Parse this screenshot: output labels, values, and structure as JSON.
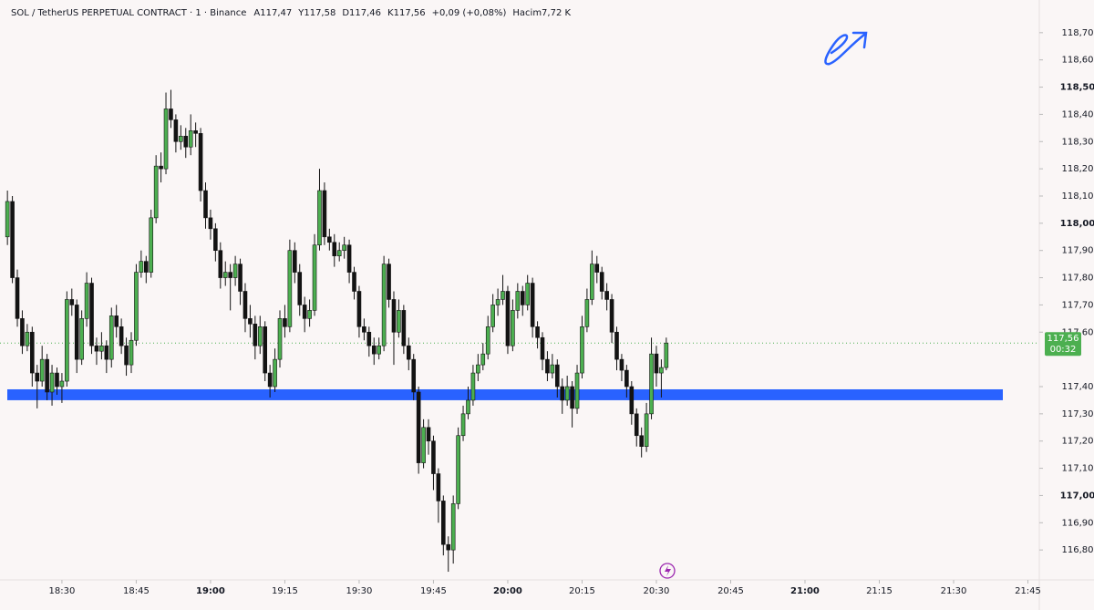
{
  "chart_data": {
    "type": "candlestick",
    "header": {
      "symbol": "SOL / TetherUS PERPETUAL CONTRACT · 1 · Binance",
      "ohlc_labels": [
        "A117,47",
        "Y117,58",
        "D117,46",
        "K117,56"
      ],
      "change": "+0,09 (+0,08%)",
      "volume": "Hacim7,72 K"
    },
    "up_color": "#4caf50",
    "down_color": "#131313",
    "zone_color": "#2962ff",
    "zone": [
      117.35,
      117.39
    ],
    "last_price": {
      "value": 117.56,
      "label": "117,56"
    },
    "countdown": "00:32",
    "xlim": [
      1097.5,
      1307.3
    ],
    "ylim": [
      116.69,
      118.82
    ],
    "yticks": [
      {
        "value": 116.8,
        "label": "116,80"
      },
      {
        "value": 116.9,
        "label": "116,90"
      },
      {
        "value": 117.0,
        "label": "117,00"
      },
      {
        "value": 117.1,
        "label": "117,10"
      },
      {
        "value": 117.2,
        "label": "117,20"
      },
      {
        "value": 117.3,
        "label": "117,30"
      },
      {
        "value": 117.4,
        "label": "117,40"
      },
      {
        "value": 117.6,
        "label": "117,60"
      },
      {
        "value": 117.7,
        "label": "117,70"
      },
      {
        "value": 117.8,
        "label": "117,80"
      },
      {
        "value": 117.9,
        "label": "117,90"
      },
      {
        "value": 118.0,
        "label": "118,00"
      },
      {
        "value": 118.1,
        "label": "118,10"
      },
      {
        "value": 118.2,
        "label": "118,20"
      },
      {
        "value": 118.3,
        "label": "118,30"
      },
      {
        "value": 118.4,
        "label": "118,40"
      },
      {
        "value": 118.5,
        "label": "118,50"
      },
      {
        "value": 118.6,
        "label": "118,60"
      },
      {
        "value": 118.7,
        "label": "118,70"
      }
    ],
    "xticks": [
      {
        "value": 1110,
        "label": "18:30"
      },
      {
        "value": 1125,
        "label": "18:45"
      },
      {
        "value": 1140,
        "label": "19:00"
      },
      {
        "value": 1155,
        "label": "19:15"
      },
      {
        "value": 1170,
        "label": "19:30"
      },
      {
        "value": 1185,
        "label": "19:45"
      },
      {
        "value": 1200,
        "label": "20:00"
      },
      {
        "value": 1215,
        "label": "20:15"
      },
      {
        "value": 1230,
        "label": "20:30"
      },
      {
        "value": 1245,
        "label": "20:45"
      },
      {
        "value": 1260,
        "label": "21:00"
      },
      {
        "value": 1275,
        "label": "21:15"
      },
      {
        "value": 1290,
        "label": "21:30"
      },
      {
        "value": 1305,
        "label": "21:45"
      }
    ],
    "x": [
      1099,
      1100,
      1101,
      1102,
      1103,
      1104,
      1105,
      1106,
      1107,
      1108,
      1109,
      1110,
      1111,
      1112,
      1113,
      1114,
      1115,
      1116,
      1117,
      1118,
      1119,
      1120,
      1121,
      1122,
      1123,
      1124,
      1125,
      1126,
      1127,
      1128,
      1129,
      1130,
      1131,
      1132,
      1133,
      1134,
      1135,
      1136,
      1137,
      1138,
      1139,
      1140,
      1141,
      1142,
      1143,
      1144,
      1145,
      1146,
      1147,
      1148,
      1149,
      1150,
      1151,
      1152,
      1153,
      1154,
      1155,
      1156,
      1157,
      1158,
      1159,
      1160,
      1161,
      1162,
      1163,
      1164,
      1165,
      1166,
      1167,
      1168,
      1169,
      1170,
      1171,
      1172,
      1173,
      1174,
      1175,
      1176,
      1177,
      1178,
      1179,
      1180,
      1181,
      1182,
      1183,
      1184,
      1185,
      1186,
      1187,
      1188,
      1189,
      1190,
      1191,
      1192,
      1193,
      1194,
      1195,
      1196,
      1197,
      1198,
      1199,
      1200,
      1201,
      1202,
      1203,
      1204,
      1205,
      1206,
      1207,
      1208,
      1209,
      1210,
      1211,
      1212,
      1213,
      1214,
      1215,
      1216,
      1217,
      1218,
      1219,
      1220,
      1221,
      1222,
      1223,
      1224,
      1225,
      1226,
      1227,
      1228,
      1229,
      1230,
      1231,
      1232
    ],
    "ohlc": [
      [
        117.95,
        118.12,
        117.92,
        118.08
      ],
      [
        118.08,
        118.1,
        117.78,
        117.8
      ],
      [
        117.8,
        117.83,
        117.62,
        117.65
      ],
      [
        117.65,
        117.68,
        117.52,
        117.55
      ],
      [
        117.55,
        117.63,
        117.53,
        117.6
      ],
      [
        117.6,
        117.62,
        117.4,
        117.45
      ],
      [
        117.45,
        117.48,
        117.32,
        117.42
      ],
      [
        117.42,
        117.55,
        117.4,
        117.5
      ],
      [
        117.5,
        117.52,
        117.35,
        117.38
      ],
      [
        117.38,
        117.48,
        117.33,
        117.45
      ],
      [
        117.45,
        117.47,
        117.37,
        117.4
      ],
      [
        117.4,
        117.45,
        117.34,
        117.42
      ],
      [
        117.42,
        117.75,
        117.4,
        117.72
      ],
      [
        117.72,
        117.76,
        117.66,
        117.7
      ],
      [
        117.7,
        117.72,
        117.45,
        117.5
      ],
      [
        117.5,
        117.68,
        117.48,
        117.65
      ],
      [
        117.65,
        117.82,
        117.62,
        117.78
      ],
      [
        117.78,
        117.8,
        117.52,
        117.55
      ],
      [
        117.55,
        117.58,
        117.48,
        117.53
      ],
      [
        117.53,
        117.6,
        117.5,
        117.55
      ],
      [
        117.55,
        117.57,
        117.45,
        117.5
      ],
      [
        117.5,
        117.69,
        117.47,
        117.66
      ],
      [
        117.66,
        117.7,
        117.58,
        117.62
      ],
      [
        117.62,
        117.65,
        117.52,
        117.55
      ],
      [
        117.55,
        117.58,
        117.44,
        117.48
      ],
      [
        117.48,
        117.6,
        117.45,
        117.57
      ],
      [
        117.57,
        117.85,
        117.55,
        117.82
      ],
      [
        117.82,
        117.9,
        117.8,
        117.86
      ],
      [
        117.86,
        117.88,
        117.78,
        117.82
      ],
      [
        117.82,
        118.05,
        117.8,
        118.02
      ],
      [
        118.02,
        118.25,
        118.0,
        118.21
      ],
      [
        118.21,
        118.26,
        118.15,
        118.2
      ],
      [
        118.2,
        118.48,
        118.18,
        118.42
      ],
      [
        118.42,
        118.49,
        118.35,
        118.38
      ],
      [
        118.38,
        118.4,
        118.26,
        118.3
      ],
      [
        118.3,
        118.36,
        118.27,
        118.32
      ],
      [
        118.32,
        118.35,
        118.24,
        118.28
      ],
      [
        118.28,
        118.4,
        118.25,
        118.34
      ],
      [
        118.34,
        118.37,
        118.28,
        118.33
      ],
      [
        118.33,
        118.35,
        118.08,
        118.12
      ],
      [
        118.12,
        118.15,
        117.98,
        118.02
      ],
      [
        118.02,
        118.05,
        117.94,
        117.98
      ],
      [
        117.98,
        118.0,
        117.86,
        117.9
      ],
      [
        117.9,
        117.93,
        117.76,
        117.8
      ],
      [
        117.8,
        117.86,
        117.77,
        117.82
      ],
      [
        117.82,
        117.85,
        117.68,
        117.8
      ],
      [
        117.8,
        117.88,
        117.77,
        117.85
      ],
      [
        117.85,
        117.87,
        117.7,
        117.75
      ],
      [
        117.75,
        117.78,
        117.6,
        117.65
      ],
      [
        117.65,
        117.7,
        117.58,
        117.63
      ],
      [
        117.63,
        117.66,
        117.5,
        117.55
      ],
      [
        117.55,
        117.66,
        117.52,
        117.62
      ],
      [
        117.62,
        117.64,
        117.42,
        117.45
      ],
      [
        117.45,
        117.48,
        117.36,
        117.4
      ],
      [
        117.4,
        117.54,
        117.38,
        117.5
      ],
      [
        117.5,
        117.68,
        117.47,
        117.65
      ],
      [
        117.65,
        117.7,
        117.58,
        117.62
      ],
      [
        117.62,
        117.94,
        117.6,
        117.9
      ],
      [
        117.9,
        117.93,
        117.78,
        117.82
      ],
      [
        117.82,
        117.85,
        117.66,
        117.7
      ],
      [
        117.7,
        117.73,
        117.6,
        117.65
      ],
      [
        117.65,
        117.72,
        117.62,
        117.68
      ],
      [
        117.68,
        117.96,
        117.66,
        117.92
      ],
      [
        117.92,
        118.2,
        117.9,
        118.12
      ],
      [
        118.12,
        118.15,
        117.92,
        117.95
      ],
      [
        117.95,
        117.98,
        117.9,
        117.93
      ],
      [
        117.93,
        117.96,
        117.84,
        117.88
      ],
      [
        117.88,
        117.93,
        117.86,
        117.9
      ],
      [
        117.9,
        117.95,
        117.87,
        117.92
      ],
      [
        117.92,
        117.94,
        117.78,
        117.82
      ],
      [
        117.82,
        117.84,
        117.72,
        117.75
      ],
      [
        117.75,
        117.77,
        117.58,
        117.62
      ],
      [
        117.62,
        117.65,
        117.57,
        117.6
      ],
      [
        117.6,
        117.62,
        117.51,
        117.55
      ],
      [
        117.55,
        117.58,
        117.48,
        117.52
      ],
      [
        117.52,
        117.58,
        117.5,
        117.55
      ],
      [
        117.55,
        117.88,
        117.53,
        117.85
      ],
      [
        117.85,
        117.87,
        117.69,
        117.72
      ],
      [
        117.72,
        117.75,
        117.48,
        117.6
      ],
      [
        117.6,
        117.72,
        117.58,
        117.68
      ],
      [
        117.68,
        117.7,
        117.52,
        117.55
      ],
      [
        117.55,
        117.58,
        117.46,
        117.5
      ],
      [
        117.5,
        117.52,
        117.35,
        117.38
      ],
      [
        117.38,
        117.4,
        117.08,
        117.12
      ],
      [
        117.12,
        117.28,
        117.1,
        117.25
      ],
      [
        117.25,
        117.28,
        117.15,
        117.2
      ],
      [
        117.2,
        117.22,
        117.02,
        117.08
      ],
      [
        117.08,
        117.1,
        116.9,
        116.98
      ],
      [
        116.98,
        117.0,
        116.78,
        116.82
      ],
      [
        116.82,
        116.85,
        116.72,
        116.8
      ],
      [
        116.8,
        117.0,
        116.75,
        116.97
      ],
      [
        116.97,
        117.25,
        116.95,
        117.22
      ],
      [
        117.22,
        117.33,
        117.2,
        117.3
      ],
      [
        117.3,
        117.4,
        117.28,
        117.35
      ],
      [
        117.35,
        117.48,
        117.33,
        117.45
      ],
      [
        117.45,
        117.52,
        117.42,
        117.48
      ],
      [
        117.48,
        117.56,
        117.46,
        117.52
      ],
      [
        117.52,
        117.66,
        117.5,
        117.62
      ],
      [
        117.62,
        117.74,
        117.6,
        117.7
      ],
      [
        117.7,
        117.76,
        117.66,
        117.72
      ],
      [
        117.72,
        117.81,
        117.7,
        117.75
      ],
      [
        117.75,
        117.77,
        117.52,
        117.55
      ],
      [
        117.55,
        117.72,
        117.53,
        117.68
      ],
      [
        117.68,
        117.78,
        117.65,
        117.75
      ],
      [
        117.75,
        117.77,
        117.66,
        117.7
      ],
      [
        117.7,
        117.81,
        117.68,
        117.78
      ],
      [
        117.78,
        117.8,
        117.58,
        117.62
      ],
      [
        117.62,
        117.64,
        117.54,
        117.58
      ],
      [
        117.58,
        117.6,
        117.46,
        117.5
      ],
      [
        117.5,
        117.53,
        117.42,
        117.45
      ],
      [
        117.45,
        117.52,
        117.43,
        117.48
      ],
      [
        117.48,
        117.5,
        117.36,
        117.4
      ],
      [
        117.4,
        117.43,
        117.3,
        117.35
      ],
      [
        117.35,
        117.44,
        117.33,
        117.4
      ],
      [
        117.4,
        117.42,
        117.25,
        117.32
      ],
      [
        117.32,
        117.48,
        117.3,
        117.45
      ],
      [
        117.45,
        117.66,
        117.43,
        117.62
      ],
      [
        117.62,
        117.76,
        117.6,
        117.72
      ],
      [
        117.72,
        117.9,
        117.7,
        117.85
      ],
      [
        117.85,
        117.88,
        117.78,
        117.82
      ],
      [
        117.82,
        117.84,
        117.72,
        117.75
      ],
      [
        117.75,
        117.78,
        117.68,
        117.72
      ],
      [
        117.72,
        117.74,
        117.56,
        117.6
      ],
      [
        117.6,
        117.62,
        117.46,
        117.5
      ],
      [
        117.5,
        117.52,
        117.42,
        117.46
      ],
      [
        117.46,
        117.48,
        117.36,
        117.4
      ],
      [
        117.4,
        117.42,
        117.26,
        117.3
      ],
      [
        117.3,
        117.32,
        117.18,
        117.22
      ],
      [
        117.22,
        117.25,
        117.14,
        117.18
      ],
      [
        117.18,
        117.34,
        117.16,
        117.3
      ],
      [
        117.3,
        117.58,
        117.28,
        117.52
      ],
      [
        117.52,
        117.55,
        117.4,
        117.45
      ],
      [
        117.45,
        117.5,
        117.36,
        117.47
      ],
      [
        117.47,
        117.58,
        117.46,
        117.56
      ]
    ]
  }
}
